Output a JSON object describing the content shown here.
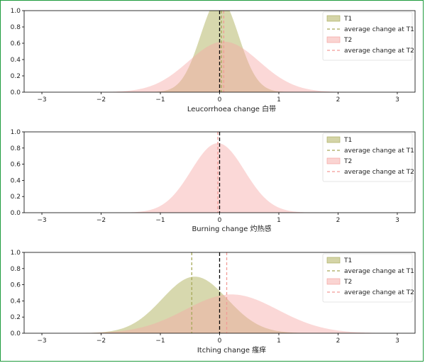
{
  "colors": {
    "t1_fill": "#b7b86c",
    "t1_line": "#a7a858",
    "t2_fill": "#f6a9a6",
    "t2_line": "#f29b97",
    "zero_line": "#000000",
    "frame": "#1e9b3d"
  },
  "chart_data": [
    {
      "type": "area",
      "xlabel": "Leucorrhoea change 白带",
      "xlim": [
        -3.3,
        3.3
      ],
      "ylim": [
        0,
        1.0
      ],
      "xticks": [
        -3,
        -2,
        -1,
        0,
        1,
        2,
        3
      ],
      "yticks": [
        "0.0",
        "0.2",
        "0.4",
        "0.6",
        "0.8",
        "1.0"
      ],
      "zero_line": 0,
      "legend_position": "top-right",
      "legend": [
        "T1",
        "average change at T1",
        "T2",
        "average change at T2"
      ],
      "series": [
        {
          "name": "T1",
          "mean": 0.0,
          "peak": 1.15,
          "sd": 0.32,
          "average_change": 0.03
        },
        {
          "name": "T2",
          "mean": 0.07,
          "peak": 0.62,
          "sd": 0.6,
          "average_change": 0.07
        }
      ]
    },
    {
      "type": "area",
      "xlabel": "Burning change 灼热感",
      "xlim": [
        -3.3,
        3.3
      ],
      "ylim": [
        0,
        1.0
      ],
      "xticks": [
        -3,
        -2,
        -1,
        0,
        1,
        2,
        3
      ],
      "yticks": [
        "0.0",
        "0.2",
        "0.4",
        "0.6",
        "0.8",
        "1.0"
      ],
      "zero_line": 0,
      "legend_position": "top-right",
      "legend": [
        "T1",
        "average change at T1",
        "T2",
        "average change at T2"
      ],
      "series": [
        {
          "name": "T1",
          "mean": 0.0,
          "peak": 0.0,
          "sd": 0.45,
          "average_change": null
        },
        {
          "name": "T2",
          "mean": -0.03,
          "peak": 0.86,
          "sd": 0.45,
          "average_change": -0.03
        }
      ]
    },
    {
      "type": "area",
      "xlabel": "Itching change 瘙痒",
      "xlim": [
        -3.3,
        3.3
      ],
      "ylim": [
        0,
        1.0
      ],
      "xticks": [
        -3,
        -2,
        -1,
        0,
        1,
        2,
        3
      ],
      "yticks": [
        "0.0",
        "0.2",
        "0.4",
        "0.6",
        "0.8",
        "1.0"
      ],
      "zero_line": 0,
      "legend_position": "top-right",
      "legend": [
        "T1",
        "average change at T1",
        "T2",
        "average change at T2"
      ],
      "series": [
        {
          "name": "T1",
          "mean": -0.42,
          "peak": 0.7,
          "sd": 0.55,
          "average_change": -0.47
        },
        {
          "name": "T2",
          "mean": 0.2,
          "peak": 0.48,
          "sd": 0.78,
          "average_change": 0.12
        }
      ]
    }
  ]
}
